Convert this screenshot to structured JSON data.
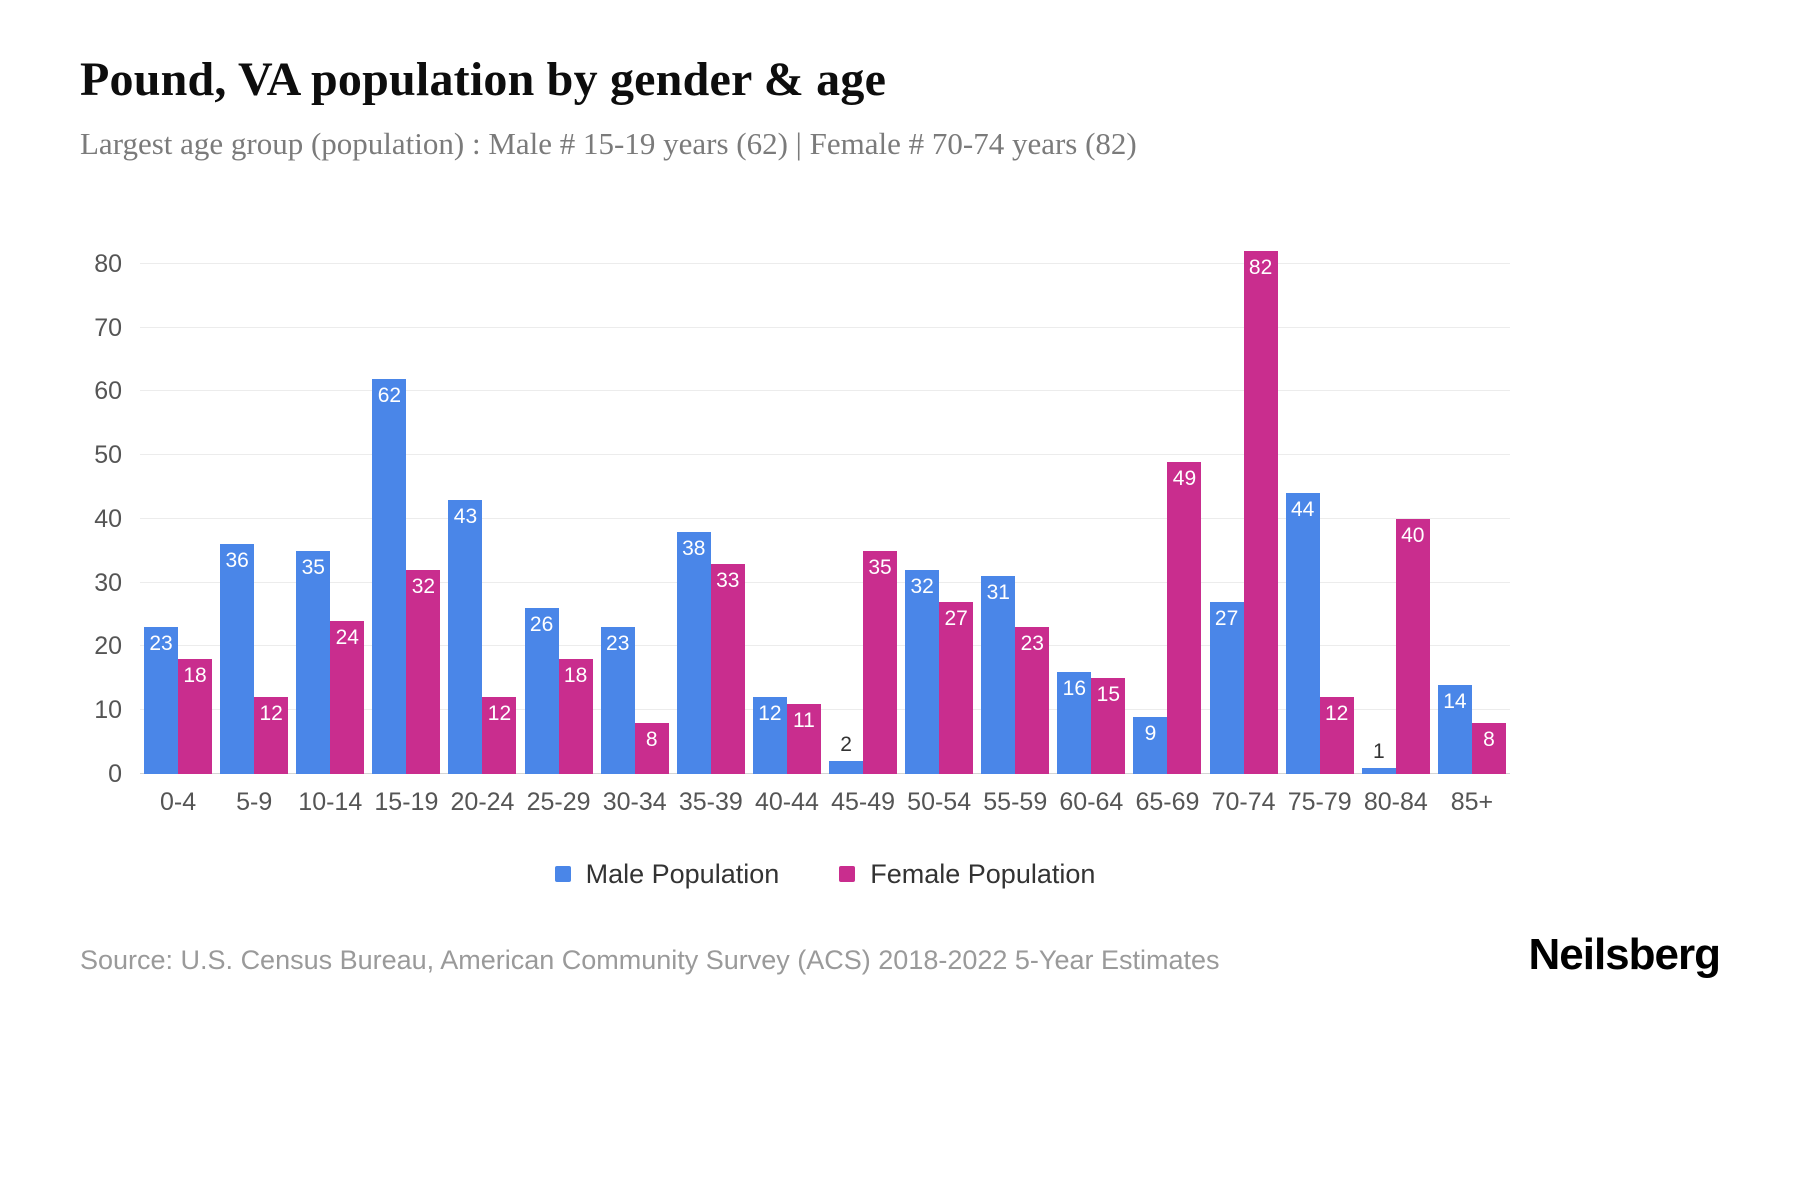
{
  "header": {
    "title": "Pound, VA population by gender & age",
    "subtitle": "Largest age group (population) : Male # 15-19 years (62) | Female # 70-74 years (82)"
  },
  "chart_data": {
    "type": "bar",
    "title": "Pound, VA population by gender & age",
    "categories": [
      "0-4",
      "5-9",
      "10-14",
      "15-19",
      "20-24",
      "25-29",
      "30-34",
      "35-39",
      "40-44",
      "45-49",
      "50-54",
      "55-59",
      "60-64",
      "65-69",
      "70-74",
      "75-79",
      "80-84",
      "85+"
    ],
    "series": [
      {
        "name": "Male Population",
        "color": "#4a86e8",
        "values": [
          23,
          36,
          35,
          62,
          43,
          26,
          23,
          38,
          12,
          2,
          32,
          31,
          16,
          9,
          27,
          44,
          1,
          14
        ]
      },
      {
        "name": "Female Population",
        "color": "#c92d8e",
        "values": [
          18,
          12,
          24,
          32,
          12,
          18,
          8,
          33,
          11,
          35,
          27,
          23,
          15,
          49,
          82,
          12,
          40,
          8
        ]
      }
    ],
    "xlabel": "",
    "ylabel": "",
    "ylim": [
      0,
      80
    ],
    "yticks": [
      0,
      10,
      20,
      30,
      40,
      50,
      60,
      70,
      80
    ],
    "grid": true,
    "legend_position": "bottom",
    "bar_value_labels": true
  },
  "footer": {
    "source": "Source: U.S. Census Bureau, American Community Survey (ACS) 2018-2022 5-Year Estimates",
    "brand": "Neilsberg"
  }
}
